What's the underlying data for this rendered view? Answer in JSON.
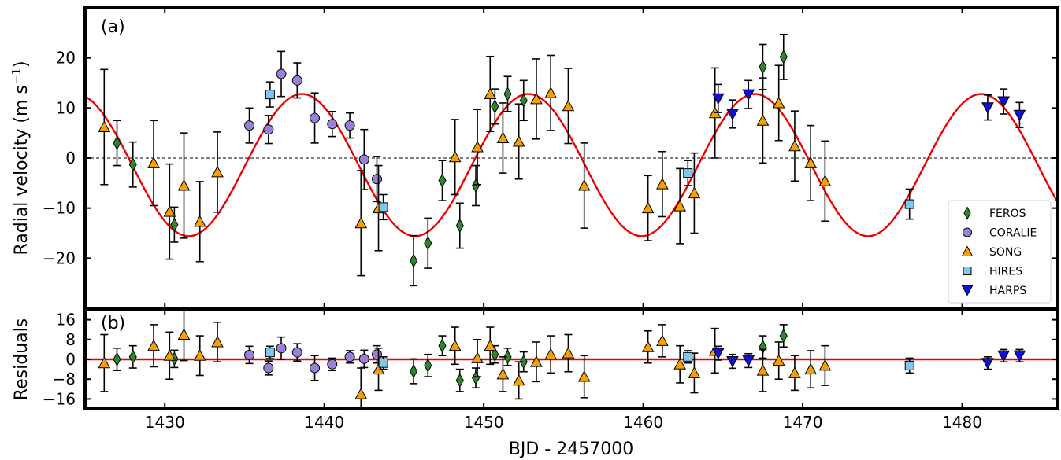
{
  "chart_data": [
    {
      "type": "scatter",
      "panel_label": "(a)",
      "ylabel": "Radial velocity (m s",
      "ylabel_sup": "−1",
      "ylabel_end": ")",
      "xlim": [
        1425,
        1486
      ],
      "ylim": [
        -30,
        30
      ],
      "yticks": [
        -20,
        -10,
        0,
        10,
        20
      ],
      "yticklabels": [
        "−20",
        "−10",
        "0",
        "10",
        "20"
      ],
      "zero_line": "dashed",
      "model": {
        "name": "Keplerian fit",
        "amplitude": 14.2,
        "period": 14.2,
        "peak_x": 1452.8,
        "offset": -1.4,
        "color": "#ee0000"
      },
      "legend": {
        "placement": "lower-right",
        "entries": [
          "FEROS",
          "CORALIE",
          "SONG",
          "HIRES",
          "HARPS"
        ]
      },
      "series": [
        {
          "name": "FEROS",
          "marker": "diamond",
          "color": "#2a8a2a",
          "points": [
            [
              1427.0,
              3.0,
              4.5
            ],
            [
              1428.0,
              -1.3,
              4.5
            ],
            [
              1430.6,
              -13.3,
              3.5
            ],
            [
              1445.6,
              -20.5,
              5.0
            ],
            [
              1446.5,
              -17.0,
              5.0
            ],
            [
              1447.4,
              -4.5,
              4.0
            ],
            [
              1448.5,
              -13.5,
              4.5
            ],
            [
              1449.5,
              -5.5,
              4.0
            ],
            [
              1450.7,
              10.3,
              3.5
            ],
            [
              1451.5,
              12.8,
              3.5
            ],
            [
              1452.5,
              11.5,
              4.0
            ],
            [
              1467.5,
              18.2,
              4.5
            ],
            [
              1468.8,
              20.2,
              4.5
            ]
          ]
        },
        {
          "name": "CORALIE",
          "marker": "circle",
          "color": "#9a7fd8",
          "points": [
            [
              1435.3,
              6.5,
              3.5
            ],
            [
              1436.5,
              5.7,
              2.8
            ],
            [
              1437.3,
              16.8,
              4.5
            ],
            [
              1438.3,
              15.5,
              3.5
            ],
            [
              1439.4,
              8.0,
              5.0
            ],
            [
              1440.5,
              6.8,
              2.5
            ],
            [
              1441.6,
              6.5,
              2.5
            ],
            [
              1442.5,
              -0.3,
              6.0
            ],
            [
              1443.3,
              -4.2,
              4.5
            ]
          ]
        },
        {
          "name": "SONG",
          "marker": "triangle-up",
          "color": "#f5a000",
          "points": [
            [
              1426.2,
              6.2,
              11.5
            ],
            [
              1429.3,
              -1.0,
              8.5
            ],
            [
              1430.3,
              -10.7,
              9.5
            ],
            [
              1431.2,
              -5.5,
              10.5
            ],
            [
              1432.2,
              -12.7,
              8.0
            ],
            [
              1433.3,
              -2.8,
              8.0
            ],
            [
              1442.3,
              -13.0,
              10.5
            ],
            [
              1443.4,
              -10.0,
              8.5
            ],
            [
              1448.2,
              0.2,
              7.5
            ],
            [
              1449.6,
              2.2,
              7.5
            ],
            [
              1450.4,
              12.8,
              7.5
            ],
            [
              1451.2,
              4.0,
              7.0
            ],
            [
              1452.2,
              3.3,
              7.5
            ],
            [
              1453.3,
              11.8,
              8.0
            ],
            [
              1454.2,
              13.0,
              7.5
            ],
            [
              1455.3,
              10.4,
              7.5
            ],
            [
              1456.3,
              -5.5,
              8.5
            ],
            [
              1460.3,
              -10.0,
              6.5
            ],
            [
              1461.2,
              -5.2,
              6.5
            ],
            [
              1462.3,
              -9.6,
              7.5
            ],
            [
              1463.2,
              -7.0,
              8.0
            ],
            [
              1464.5,
              9.0,
              9.0
            ],
            [
              1467.5,
              7.5,
              8.5
            ],
            [
              1468.5,
              11.0,
              7.5
            ],
            [
              1469.5,
              2.4,
              7.0
            ],
            [
              1470.5,
              -1.0,
              7.5
            ],
            [
              1471.4,
              -4.6,
              8.0
            ]
          ]
        },
        {
          "name": "HIRES",
          "marker": "square",
          "color": "#7ec8ef",
          "points": [
            [
              1436.6,
              12.7,
              2.5
            ],
            [
              1443.7,
              -9.8,
              2.5
            ],
            [
              1462.8,
              -3.0,
              2.5
            ],
            [
              1476.7,
              -9.2,
              3.0
            ]
          ]
        },
        {
          "name": "HARPS",
          "marker": "triangle-down",
          "color": "#1010dd",
          "points": [
            [
              1464.7,
              11.9,
              2.8
            ],
            [
              1465.6,
              8.8,
              2.8
            ],
            [
              1466.6,
              12.7,
              2.8
            ],
            [
              1481.6,
              10.1,
              2.5
            ],
            [
              1482.6,
              11.3,
              2.5
            ],
            [
              1483.6,
              8.6,
              2.5
            ]
          ]
        }
      ]
    },
    {
      "type": "scatter",
      "panel_label": "(b)",
      "ylabel": "Residuals",
      "xlabel": "BJD - 2457000",
      "xlim": [
        1425,
        1486
      ],
      "ylim": [
        -20,
        20
      ],
      "xticks": [
        1430,
        1440,
        1450,
        1460,
        1470,
        1480
      ],
      "xticklabels": [
        "1430",
        "1440",
        "1450",
        "1460",
        "1470",
        "1480"
      ],
      "yticks": [
        -16,
        -8,
        0,
        8,
        16
      ],
      "yticklabels": [
        "−16",
        "−8",
        "0",
        "8",
        "16"
      ],
      "zero_line": "solid-red",
      "series": [
        {
          "name": "FEROS",
          "marker": "diamond",
          "color": "#2a8a2a",
          "points": [
            [
              1427.0,
              0.0,
              4.5
            ],
            [
              1428.0,
              1.0,
              4.5
            ],
            [
              1430.6,
              0.2,
              3.5
            ],
            [
              1445.6,
              -4.8,
              5.0
            ],
            [
              1446.5,
              -2.5,
              4.5
            ],
            [
              1447.4,
              5.5,
              4.0
            ],
            [
              1448.5,
              -8.5,
              4.5
            ],
            [
              1449.5,
              -7.5,
              4.0
            ],
            [
              1450.7,
              2.0,
              3.5
            ],
            [
              1451.5,
              1.0,
              3.5
            ],
            [
              1452.5,
              -1.0,
              4.0
            ],
            [
              1467.5,
              5.0,
              4.5
            ],
            [
              1468.8,
              9.5,
              4.5
            ]
          ]
        },
        {
          "name": "CORALIE",
          "marker": "circle",
          "color": "#9a7fd8",
          "points": [
            [
              1435.3,
              1.8,
              3.5
            ],
            [
              1436.5,
              -3.5,
              2.8
            ],
            [
              1437.3,
              4.5,
              4.5
            ],
            [
              1438.3,
              2.8,
              3.5
            ],
            [
              1439.4,
              -3.5,
              5.0
            ],
            [
              1440.5,
              -2.0,
              2.5
            ],
            [
              1441.6,
              1.0,
              2.5
            ],
            [
              1442.5,
              0.2,
              3.5
            ],
            [
              1443.3,
              2.0,
              3.5
            ]
          ]
        },
        {
          "name": "SONG",
          "marker": "triangle-up",
          "color": "#f5a000",
          "points": [
            [
              1426.2,
              -1.5,
              11.5
            ],
            [
              1429.3,
              5.5,
              8.5
            ],
            [
              1430.3,
              1.5,
              9.5
            ],
            [
              1431.2,
              10.0,
              10.5
            ],
            [
              1432.2,
              1.5,
              8.0
            ],
            [
              1433.3,
              7.0,
              8.0
            ],
            [
              1442.3,
              -14.0,
              10.5
            ],
            [
              1443.4,
              -4.0,
              8.5
            ],
            [
              1448.2,
              5.5,
              7.5
            ],
            [
              1449.6,
              0.5,
              7.5
            ],
            [
              1450.4,
              5.5,
              7.5
            ],
            [
              1451.2,
              -6.0,
              7.0
            ],
            [
              1452.2,
              -8.5,
              7.5
            ],
            [
              1453.3,
              -1.0,
              8.0
            ],
            [
              1454.2,
              2.0,
              7.5
            ],
            [
              1455.3,
              2.5,
              7.5
            ],
            [
              1456.3,
              -7.0,
              8.5
            ],
            [
              1460.3,
              5.0,
              6.5
            ],
            [
              1461.2,
              7.5,
              6.5
            ],
            [
              1462.3,
              -2.0,
              7.5
            ],
            [
              1463.2,
              -5.5,
              8.0
            ],
            [
              1464.5,
              3.5,
              9.0
            ],
            [
              1467.5,
              -4.5,
              8.5
            ],
            [
              1468.5,
              -0.5,
              7.5
            ],
            [
              1469.5,
              -5.5,
              7.0
            ],
            [
              1470.5,
              -4.0,
              7.5
            ],
            [
              1471.4,
              -2.5,
              8.0
            ]
          ]
        },
        {
          "name": "HIRES",
          "marker": "square",
          "color": "#7ec8ef",
          "points": [
            [
              1436.6,
              2.8,
              2.5
            ],
            [
              1443.7,
              -1.5,
              2.5
            ],
            [
              1462.8,
              1.0,
              2.5
            ],
            [
              1476.7,
              -2.5,
              3.0
            ]
          ]
        },
        {
          "name": "HARPS",
          "marker": "triangle-down",
          "color": "#1010dd",
          "points": [
            [
              1464.7,
              2.5,
              2.8
            ],
            [
              1465.6,
              -0.8,
              2.8
            ],
            [
              1466.6,
              -0.5,
              2.8
            ],
            [
              1481.6,
              -1.5,
              2.5
            ],
            [
              1482.6,
              1.5,
              2.5
            ],
            [
              1483.6,
              1.5,
              2.5
            ]
          ]
        }
      ]
    }
  ]
}
